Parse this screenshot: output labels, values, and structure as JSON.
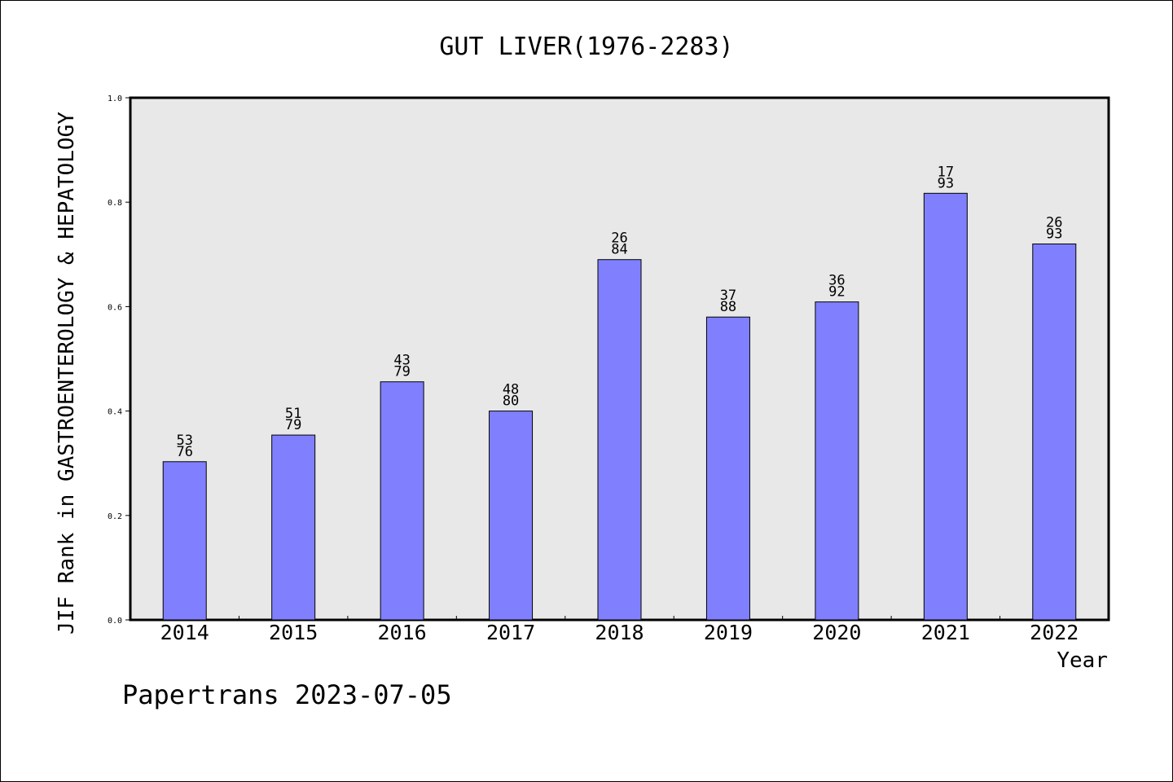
{
  "chart_data": {
    "type": "bar",
    "title": "GUT LIVER(1976-2283)",
    "xlabel": "Year",
    "ylabel": "JIF Rank in GASTROENTEROLOGY & HEPATOLOGY",
    "categories": [
      "2014",
      "2015",
      "2016",
      "2017",
      "2018",
      "2019",
      "2020",
      "2021",
      "2022"
    ],
    "values": [
      0.303,
      0.354,
      0.456,
      0.4,
      0.69,
      0.58,
      0.609,
      0.817,
      0.72
    ],
    "bar_labels": [
      [
        "53",
        "76"
      ],
      [
        "51",
        "79"
      ],
      [
        "43",
        "79"
      ],
      [
        "48",
        "80"
      ],
      [
        "26",
        "84"
      ],
      [
        "37",
        "88"
      ],
      [
        "36",
        "92"
      ],
      [
        "17",
        "93"
      ],
      [
        "26",
        "93"
      ]
    ],
    "ylim": [
      0,
      1.0
    ],
    "yticks": [
      "0.0",
      "0.2",
      "0.4",
      "0.6",
      "0.8",
      "1.0"
    ],
    "grid": false,
    "colors": {
      "bar": "#8080ff",
      "plot_background": "#e8e8e8"
    }
  },
  "footer": {
    "watermark": "Papertrans 2023-07-05"
  }
}
